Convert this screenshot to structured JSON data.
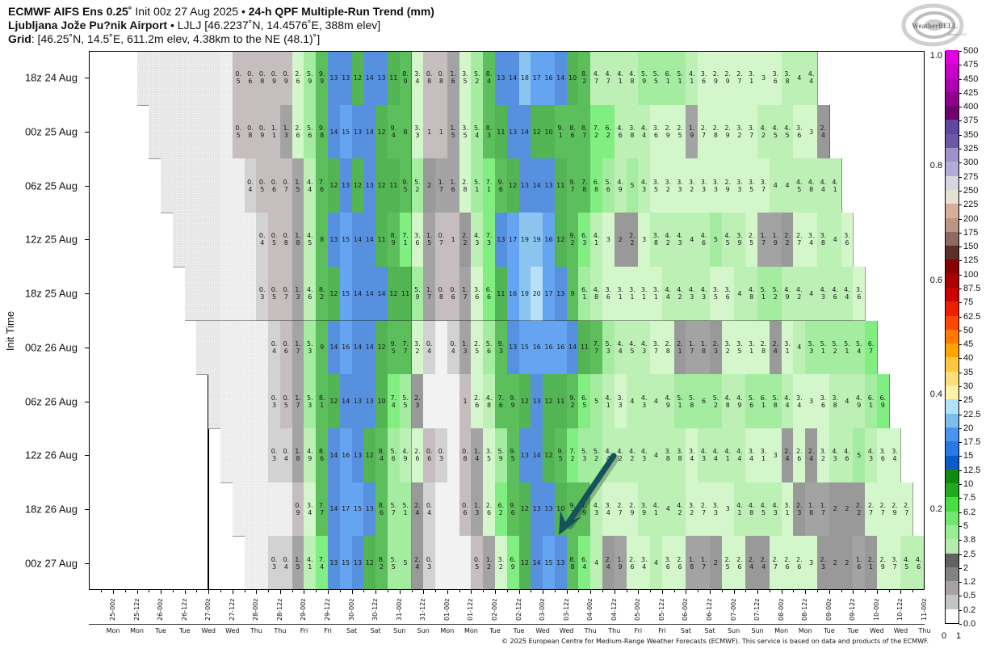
{
  "header": {
    "model": "ECMWF AIFS Ens 0.25˚",
    "init": " Init 00z 27 Aug 2025 • ",
    "product": "24-h QPF Multiple-Run Trend (mm)",
    "station": "Ljubljana Jože Pu?nik Airport",
    "station_info": " • LJLJ [46.2237˚N, 14.4576˚E, 388m elev]",
    "grid_label": "Grid",
    "grid_info": ": [46.25˚N, 14.5˚E, 611.2m elev, 4.38km to the NE (48.1)˚]"
  },
  "logo": {
    "text": "WeatherBELL",
    "sub": "Analytics LLC"
  },
  "footer": "© 2025 European Centre for Medium-Range Weather Forecasts (ECMWF). This service is based on data and products of the ECMWF.",
  "annotation": {
    "arrow_color": "#14525c"
  },
  "chart_data": {
    "type": "heatmap",
    "title": "24-h QPF Multiple-Run Trend (mm)",
    "ylabel": "Init Time",
    "x_ticks": [
      "25-00z",
      "25-12z",
      "26-00z",
      "26-12z",
      "27-00z",
      "27-12z",
      "28-00z",
      "28-12z",
      "29-00z",
      "29-12z",
      "30-00z",
      "30-12z",
      "31-00z",
      "31-12z",
      "01-00z",
      "01-12z",
      "02-00z",
      "02-12z",
      "03-00z",
      "03-12z",
      "04-00z",
      "04-12z",
      "05-00z",
      "05-12z",
      "06-00z",
      "06-12z",
      "07-00z",
      "07-12z",
      "08-00z",
      "08-12z",
      "09-00z",
      "09-12z",
      "10-00z",
      "10-12z",
      "11-00z"
    ],
    "x_days": [
      "Mon",
      "Mon",
      "Tue",
      "Tue",
      "Wed",
      "Wed",
      "Thu",
      "Thu",
      "Fri",
      "Fri",
      "Sat",
      "Sat",
      "Sun",
      "Sun",
      "Mon",
      "Mon",
      "Tue",
      "Tue",
      "Wed",
      "Wed",
      "Thu",
      "Thu",
      "Fri",
      "Fri",
      "Sat",
      "Sat",
      "Sun",
      "Sun",
      "Mon",
      "Mon",
      "Tue",
      "Tue",
      "Wed",
      "Wed",
      "Thu"
    ],
    "current_init_marker": "27-00z",
    "rows": [
      {
        "label": "18z 24 Aug",
        "values": [
          null,
          null,
          null,
          null,
          null,
          null,
          null,
          null,
          0.5,
          0.6,
          0.8,
          0.9,
          0.9,
          2.6,
          5.9,
          9.9,
          13,
          13,
          12,
          14,
          13,
          11,
          8.9,
          3.4,
          0.8,
          0.8,
          1.6,
          3.5,
          5.2,
          8.4,
          13,
          14,
          18,
          17,
          16,
          14,
          10,
          8.2,
          4.7,
          4.7,
          4.1,
          4.8,
          5.9,
          5.5,
          6.1,
          5.1,
          4.1,
          3.6,
          2.9,
          2.9,
          2.7,
          3.1,
          3,
          3.6,
          3.8,
          4,
          4.4
        ]
      },
      {
        "label": "00z 25 Aug",
        "values": [
          null,
          null,
          null,
          null,
          null,
          null,
          null,
          0.5,
          0.8,
          0.9,
          1.1,
          1.3,
          2.6,
          5.6,
          9.8,
          14,
          15,
          13,
          14,
          12,
          9.4,
          8,
          3.3,
          1,
          1,
          1.5,
          3.5,
          5.4,
          8.3,
          11,
          13,
          14,
          12,
          10,
          9.1,
          8.6,
          8.7,
          7.2,
          6.2,
          4.6,
          3.8,
          4.4,
          3.6,
          2.9,
          2.5,
          1.9,
          2.7,
          2.8,
          2.9,
          3.2,
          3.7,
          4.2,
          4.5,
          4.5,
          3.6,
          3,
          2.4
        ]
      },
      {
        "label": "06z 25 Aug",
        "values": [
          null,
          null,
          null,
          null,
          null,
          null,
          null,
          0.4,
          0.5,
          0.6,
          0.7,
          1.5,
          4.4,
          7.6,
          12,
          13,
          12,
          13,
          12,
          11,
          9.5,
          5.2,
          2,
          1.7,
          1.6,
          2.8,
          5.1,
          7.1,
          9.6,
          12,
          13,
          14,
          13,
          11,
          9.7,
          7.8,
          6.8,
          5.6,
          4.9,
          5,
          4.3,
          3.5,
          3.2,
          3.3,
          3.2,
          3.3,
          3.3,
          2.9,
          3.3,
          3.5,
          3.7,
          4,
          4,
          4.5,
          4.8,
          4.4,
          4.1
        ]
      },
      {
        "label": "12z 25 Aug",
        "values": [
          null,
          null,
          null,
          null,
          null,
          null,
          null,
          0.4,
          0.5,
          0.8,
          1.8,
          4.5,
          8,
          13,
          15,
          14,
          14,
          11,
          8.9,
          7.1,
          3.6,
          1.5,
          0.7,
          1,
          2.2,
          4.3,
          7.3,
          13,
          17,
          19,
          19,
          16,
          12,
          9.2,
          6.3,
          4.1,
          3,
          2,
          2.2,
          3,
          3.8,
          4.2,
          4.3,
          4,
          4.6,
          5,
          4.5,
          3.9,
          2.5,
          1.7,
          1.9,
          2.2,
          2.7,
          3.4,
          3.8,
          4,
          3.6
        ]
      },
      {
        "label": "18z 25 Aug",
        "values": [
          null,
          null,
          null,
          null,
          null,
          null,
          0.3,
          0.5,
          0.7,
          1.3,
          4.6,
          8.2,
          12,
          15,
          14,
          14,
          14,
          12,
          11,
          5.9,
          1.7,
          0.8,
          0.6,
          1.7,
          3.6,
          6.6,
          11,
          16,
          19,
          20,
          17,
          13,
          9,
          6.1,
          4.8,
          3.6,
          3.1,
          3.1,
          3.1,
          3.1,
          4.4,
          4.2,
          4.3,
          4.3,
          3.5,
          3.6,
          4,
          4.8,
          5.1,
          5.2,
          4.9,
          4.2,
          4,
          4.3,
          4.6,
          4.4,
          3.6
        ]
      },
      {
        "label": "00z 26 Aug",
        "values": [
          null,
          null,
          null,
          null,
          null,
          null,
          0.4,
          0.6,
          1.7,
          5.3,
          9,
          14,
          16,
          14,
          14,
          12,
          9.5,
          7.7,
          3.2,
          0.4,
          null,
          0.4,
          1.3,
          2.5,
          5.6,
          9.3,
          13,
          15,
          16,
          16,
          16,
          14,
          11,
          7.7,
          5.3,
          4.4,
          4.5,
          4.3,
          3.7,
          2.8,
          2.1,
          1.7,
          1.8,
          2.3,
          3.2,
          3.5,
          3.1,
          2.8,
          2.4,
          3.1,
          4,
          5.3,
          5.1,
          5.2,
          5.1,
          5.4,
          6.7
        ]
      },
      {
        "label": "06z 26 Aug",
        "values": [
          null,
          null,
          null,
          null,
          null,
          0.3,
          0.5,
          1.7,
          5.3,
          8.1,
          12,
          14,
          13,
          13,
          10,
          7.4,
          5.5,
          2.3,
          null,
          null,
          null,
          1,
          2.6,
          4.8,
          7.6,
          9.9,
          12,
          13,
          12,
          11,
          9.2,
          6.5,
          5,
          4.1,
          3.3,
          4,
          4.3,
          4,
          4.9,
          5.1,
          5.8,
          6,
          5.2,
          4.8,
          4.9,
          5.6,
          6.1,
          5.8,
          4.4,
          3.4,
          3,
          3.6,
          3.8,
          4,
          4.9,
          6.1,
          6.9
        ]
      },
      {
        "label": "12z 26 Aug",
        "values": [
          null,
          null,
          null,
          null,
          0.3,
          0.4,
          1.8,
          4.9,
          8.6,
          14,
          16,
          13,
          12,
          8.4,
          5.6,
          4.9,
          2.6,
          0.6,
          0.3,
          null,
          0.8,
          1.4,
          3.5,
          5.9,
          9.5,
          13,
          14,
          12,
          9.5,
          7.2,
          5.3,
          5.2,
          4.4,
          4.2,
          4.2,
          4.3,
          4,
          3.8,
          3.8,
          3.4,
          4.3,
          4.4,
          4.1,
          4.4,
          3.4,
          3.1,
          3,
          2.4,
          2.6,
          2.4,
          3.2,
          4.3,
          4.6,
          5,
          4.3,
          3.6,
          3.4
        ]
      },
      {
        "label": "18z 26 Aug",
        "values": [
          null,
          null,
          null,
          null,
          null,
          0.9,
          3.4,
          7.7,
          14,
          17,
          15,
          13,
          8.6,
          5.7,
          5.1,
          2.4,
          0.4,
          null,
          null,
          0.6,
          1.3,
          2.6,
          6.2,
          9.6,
          12,
          13,
          13,
          10,
          9.3,
          7.9,
          4.3,
          3.4,
          2.7,
          2.9,
          3.9,
          4.1,
          4,
          4.2,
          3.2,
          2.7,
          3.3,
          3,
          4.1,
          4.8,
          4.5,
          4.3,
          3.1,
          2.3,
          1.8,
          1.7,
          2,
          2,
          2.2,
          2.7,
          2.7,
          2.9,
          2.7
        ]
      },
      {
        "label": "00z 27 Aug",
        "values": [
          null,
          null,
          0.3,
          0.4,
          1.5,
          4.1,
          7.4,
          13,
          15,
          13,
          12,
          8.2,
          5.5,
          5,
          2.4,
          0.3,
          null,
          null,
          null,
          0.5,
          1.2,
          3.2,
          6.9,
          12,
          14,
          15,
          13,
          8.8,
          6.4,
          4,
          2.4,
          1.9,
          2.6,
          3.4,
          4,
          3.6,
          2.6,
          1.8,
          1.7,
          2,
          2.5,
          2.6,
          2.4,
          2.4,
          2.7,
          2.6,
          2.6,
          3,
          2.3,
          2,
          2,
          1.6,
          2.1,
          2.9,
          3.7,
          4.5,
          4.6
        ]
      }
    ],
    "colorbar": {
      "levels": [
        "0.0",
        "0.2",
        "0.5",
        "1.2",
        "2",
        "2.5",
        "3.8",
        "5",
        "6.2",
        "7.5",
        "10",
        "12.5",
        "15",
        "17.5",
        "20",
        "22.5",
        "25",
        "30",
        "35",
        "40",
        "45",
        "50",
        "62.5",
        "75",
        "87.5",
        "100",
        "125",
        "150",
        "175",
        "200",
        "225",
        "250",
        "275",
        "300",
        "325",
        "350",
        "375",
        "400",
        "425",
        "450",
        "475",
        "500"
      ],
      "colors": [
        "#ffffff",
        "#c4c4c4",
        "#aaa2a2",
        "#828282",
        "#626262",
        "#b4ecb0",
        "#98ee94",
        "#74e670",
        "#46de42",
        "#20aa20",
        "#0e8a0e",
        "#0c5cc8",
        "#2a7ae6",
        "#4894ee",
        "#7ebcee",
        "#b2e2f8",
        "#fff2a8",
        "#ffe078",
        "#ffc640",
        "#ffa400",
        "#ff7a00",
        "#ff4600",
        "#ee1e00",
        "#cc0000",
        "#aa0000",
        "#880000",
        "#5c3028",
        "#8e6a62",
        "#bc9484",
        "#d6ae9c",
        "#e6e2d2",
        "#d6d6e0",
        "#b2aad8",
        "#9e92c8",
        "#6e58a6",
        "#5e48a0",
        "#6e0070",
        "#8c008c",
        "#ae00ae",
        "#c800c8",
        "#e000e0"
      ],
      "secondary_ticks": [
        "0.2",
        "0.4",
        "0.6",
        "0.8",
        "1.0"
      ],
      "x_ticks": [
        "0",
        "1"
      ]
    },
    "cell_colors": {
      "bounds": [
        0.2,
        0.5,
        1.2,
        2,
        2.5,
        3.8,
        5,
        6.2,
        7.5,
        10,
        12.5,
        15,
        17.5,
        20,
        22.5
      ],
      "colors": [
        "#ffffff",
        "#d2d2d2",
        "#c6bebe",
        "#a3a3a3",
        "#999999",
        "#d3f7cb",
        "#bcf0b4",
        "#a4eca0",
        "#80ee80",
        "#5cbf5c",
        "#52b452",
        "#5890e0",
        "#64a4f0",
        "#8cc4f0",
        "#b8e0fa",
        "#b2e2f8"
      ]
    }
  }
}
